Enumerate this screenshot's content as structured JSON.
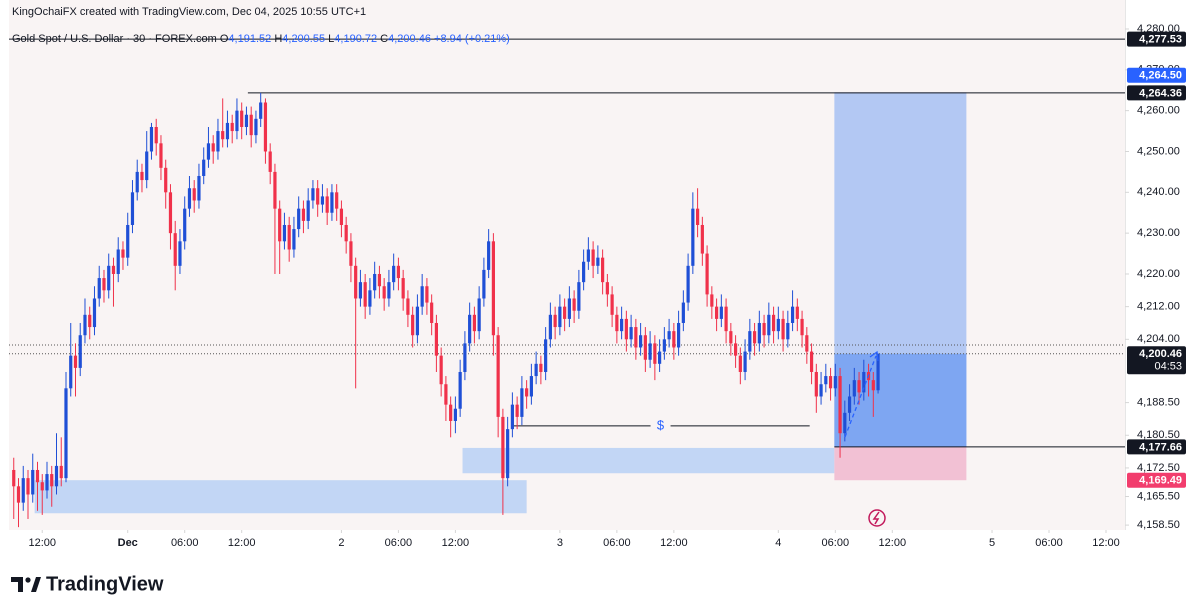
{
  "chart_data": {
    "type": "candlestick",
    "header": "KingOchaiFX created with TradingView.com, Dec 04, 2025 10:55 UTC+1",
    "symbol": "Gold Spot / U.S. Dollar · 30 · FOREX.com",
    "ohlc": [
      {
        "key": "O",
        "text": "4,191.52"
      },
      {
        "key": "H",
        "text": "4,200.55"
      },
      {
        "key": "L",
        "text": "4,190.72"
      },
      {
        "key": "C",
        "text": "4,200.46"
      }
    ],
    "change": "+8.94 (+0.21%)",
    "brand": "TradingView",
    "up_color": "#1f4fd6",
    "down_color": "#f0314a",
    "xlim": [
      -1,
      234
    ],
    "ylim": [
      4157.3,
      4287.1
    ],
    "grid": false,
    "yticks": [
      {
        "value": 4158.5,
        "label": "4,158.50"
      },
      {
        "value": 4165.5,
        "label": "4,165.50"
      },
      {
        "value": 4172.5,
        "label": "4,172.50"
      },
      {
        "value": 4180.5,
        "label": "4,180.50"
      },
      {
        "value": 4188.5,
        "label": "4,188.50"
      },
      {
        "value": 4204,
        "label": "4,204.00"
      },
      {
        "value": 4212,
        "label": "4,212.00"
      },
      {
        "value": 4220,
        "label": "4,220.00"
      },
      {
        "value": 4230,
        "label": "4,230.00"
      },
      {
        "value": 4240,
        "label": "4,240.00"
      },
      {
        "value": 4250,
        "label": "4,250.00"
      },
      {
        "value": 4260,
        "label": "4,260.00"
      },
      {
        "value": 4270,
        "label": "4,270.00"
      },
      {
        "value": 4280,
        "label": "4,280.00"
      }
    ],
    "xticks": [
      {
        "value": 6,
        "label": "12:00"
      },
      {
        "value": 24,
        "label": "Dec"
      },
      {
        "value": 36,
        "label": "06:00"
      },
      {
        "value": 48,
        "label": "12:00"
      },
      {
        "value": 69,
        "label": "2"
      },
      {
        "value": 81,
        "label": "06:00"
      },
      {
        "value": 93,
        "label": "12:00"
      },
      {
        "value": 115,
        "label": "3"
      },
      {
        "value": 127,
        "label": "06:00"
      },
      {
        "value": 139,
        "label": "12:00"
      },
      {
        "value": 161,
        "label": "4"
      },
      {
        "value": 173,
        "label": "06:00"
      },
      {
        "value": 185,
        "label": "12:00"
      },
      {
        "value": 206,
        "label": "5"
      },
      {
        "value": 218,
        "label": "06:00"
      },
      {
        "value": 230,
        "label": "12:00"
      }
    ],
    "x": [
      0,
      1,
      2,
      3,
      4,
      5,
      6,
      7,
      8,
      9,
      10,
      11,
      12,
      13,
      14,
      15,
      16,
      17,
      18,
      19,
      20,
      21,
      22,
      23,
      24,
      25,
      26,
      27,
      28,
      29,
      30,
      31,
      32,
      33,
      34,
      35,
      36,
      37,
      38,
      39,
      40,
      41,
      42,
      43,
      44,
      45,
      46,
      47,
      48,
      49,
      50,
      51,
      52,
      53,
      54,
      55,
      56,
      57,
      58,
      59,
      60,
      61,
      62,
      63,
      64,
      65,
      66,
      67,
      68,
      69,
      70,
      71,
      72,
      73,
      74,
      75,
      76,
      77,
      78,
      79,
      80,
      81,
      82,
      83,
      84,
      85,
      86,
      87,
      88,
      89,
      90,
      91,
      92,
      93,
      94,
      95,
      96,
      97,
      98,
      99,
      100,
      101,
      102,
      103,
      104,
      105,
      106,
      107,
      108,
      109,
      110,
      111,
      112,
      113,
      114,
      115,
      116,
      117,
      118,
      119,
      120,
      121,
      122,
      123,
      124,
      125,
      126,
      127,
      128,
      129,
      130,
      131,
      132,
      133,
      134,
      135,
      136,
      137,
      138,
      139,
      140,
      141,
      142,
      143,
      144,
      145,
      146,
      147,
      148,
      149,
      150,
      151,
      152,
      153,
      154,
      155,
      156,
      157,
      158,
      159,
      160,
      161,
      162,
      163,
      164,
      165,
      166,
      167,
      168,
      169,
      170,
      171,
      172,
      173,
      174,
      175,
      176,
      177,
      178,
      179,
      180,
      181,
      182
    ],
    "candles": [
      [
        4172,
        4175,
        4160,
        4168
      ],
      [
        4168,
        4170,
        4158,
        4164
      ],
      [
        4164,
        4173,
        4162,
        4170
      ],
      [
        4170,
        4172,
        4160,
        4166
      ],
      [
        4166,
        4176,
        4164,
        4172
      ],
      [
        4172,
        4174,
        4162,
        4169
      ],
      [
        4169,
        4171,
        4161,
        4167
      ],
      [
        4167,
        4174,
        4165,
        4171
      ],
      [
        4171,
        4173,
        4163,
        4168
      ],
      [
        4168,
        4181,
        4166,
        4173
      ],
      [
        4173,
        4180,
        4168,
        4170
      ],
      [
        4170,
        4196,
        4169,
        4192
      ],
      [
        4192,
        4208,
        4190,
        4200
      ],
      [
        4200,
        4203,
        4190,
        4197
      ],
      [
        4197,
        4208,
        4195,
        4205
      ],
      [
        4205,
        4214,
        4203,
        4210
      ],
      [
        4210,
        4212,
        4204,
        4207
      ],
      [
        4207,
        4217,
        4205,
        4214
      ],
      [
        4214,
        4222,
        4212,
        4219
      ],
      [
        4219,
        4221,
        4213,
        4216
      ],
      [
        4216,
        4225,
        4214,
        4222
      ],
      [
        4222,
        4224,
        4212,
        4220
      ],
      [
        4220,
        4229,
        4218,
        4226
      ],
      [
        4226,
        4228,
        4221,
        4224
      ],
      [
        4224,
        4235,
        4222,
        4232
      ],
      [
        4232,
        4243,
        4230,
        4240
      ],
      [
        4240,
        4248,
        4238,
        4245
      ],
      [
        4245,
        4247,
        4240,
        4243
      ],
      [
        4243,
        4255,
        4241,
        4250
      ],
      [
        4250,
        4257,
        4248,
        4256
      ],
      [
        4256,
        4258,
        4249,
        4252
      ],
      [
        4252,
        4254,
        4243,
        4246
      ],
      [
        4246,
        4248,
        4236,
        4240
      ],
      [
        4240,
        4242,
        4226,
        4230
      ],
      [
        4230,
        4233,
        4216,
        4222
      ],
      [
        4222,
        4231,
        4220,
        4228
      ],
      [
        4228,
        4239,
        4226,
        4236
      ],
      [
        4236,
        4244,
        4234,
        4241
      ],
      [
        4241,
        4243,
        4235,
        4238
      ],
      [
        4238,
        4247,
        4236,
        4244
      ],
      [
        4244,
        4251,
        4242,
        4248
      ],
      [
        4248,
        4256,
        4246,
        4252
      ],
      [
        4252,
        4254,
        4247,
        4250
      ],
      [
        4250,
        4258,
        4248,
        4255
      ],
      [
        4255,
        4263,
        4251,
        4253
      ],
      [
        4253,
        4260,
        4251,
        4257
      ],
      [
        4257,
        4259,
        4252,
        4255
      ],
      [
        4255,
        4263,
        4253,
        4260
      ],
      [
        4260,
        4262,
        4253,
        4256
      ],
      [
        4256,
        4261,
        4254,
        4259
      ],
      [
        4259,
        4261,
        4251,
        4254
      ],
      [
        4254,
        4260,
        4252,
        4258
      ],
      [
        4258,
        4264.36,
        4256,
        4262
      ],
      [
        4262,
        4263,
        4247,
        4250
      ],
      [
        4250,
        4252,
        4242,
        4245
      ],
      [
        4245,
        4247,
        4220,
        4236
      ],
      [
        4236,
        4238,
        4220,
        4228
      ],
      [
        4228,
        4235,
        4226,
        4232
      ],
      [
        4232,
        4234,
        4223,
        4226
      ],
      [
        4226,
        4234,
        4224,
        4231
      ],
      [
        4231,
        4239,
        4229,
        4236
      ],
      [
        4236,
        4238,
        4230,
        4233
      ],
      [
        4233,
        4241,
        4231,
        4238
      ],
      [
        4238,
        4243,
        4236,
        4241
      ],
      [
        4241,
        4243,
        4234,
        4237
      ],
      [
        4237,
        4242,
        4235,
        4239
      ],
      [
        4239,
        4241,
        4232,
        4235
      ],
      [
        4235,
        4242,
        4233,
        4240
      ],
      [
        4240,
        4242,
        4233,
        4236
      ],
      [
        4236,
        4238,
        4229,
        4232
      ],
      [
        4232,
        4234,
        4225,
        4228
      ],
      [
        4228,
        4230,
        4218,
        4222
      ],
      [
        4222,
        4224,
        4192,
        4214
      ],
      [
        4214,
        4221,
        4212,
        4218
      ],
      [
        4218,
        4220,
        4209,
        4212
      ],
      [
        4212,
        4219,
        4210,
        4216
      ],
      [
        4216,
        4223,
        4214,
        4220
      ],
      [
        4220,
        4222,
        4214,
        4217
      ],
      [
        4217,
        4219,
        4211,
        4214
      ],
      [
        4214,
        4221,
        4212,
        4218
      ],
      [
        4218,
        4225,
        4216,
        4222
      ],
      [
        4222,
        4224,
        4216,
        4219
      ],
      [
        4219,
        4221,
        4211,
        4214
      ],
      [
        4214,
        4216,
        4207,
        4210
      ],
      [
        4210,
        4212,
        4202,
        4205
      ],
      [
        4205,
        4215,
        4203,
        4212
      ],
      [
        4212,
        4220,
        4210,
        4217
      ],
      [
        4217,
        4219,
        4210,
        4213
      ],
      [
        4213,
        4215,
        4205,
        4208
      ],
      [
        4208,
        4210,
        4196,
        4200
      ],
      [
        4200,
        4202,
        4190,
        4193
      ],
      [
        4193,
        4195,
        4184,
        4188
      ],
      [
        4188,
        4190,
        4180,
        4184
      ],
      [
        4184,
        4190,
        4181,
        4187
      ],
      [
        4187,
        4199,
        4185,
        4196
      ],
      [
        4196,
        4206,
        4194,
        4203
      ],
      [
        4203,
        4213,
        4201,
        4210
      ],
      [
        4210,
        4212,
        4203,
        4206
      ],
      [
        4206,
        4217,
        4204,
        4214
      ],
      [
        4214,
        4224,
        4212,
        4221
      ],
      [
        4221,
        4231,
        4219,
        4228
      ],
      [
        4228,
        4230,
        4200,
        4205
      ],
      [
        4205,
        4207,
        4180,
        4185
      ],
      [
        4185,
        4187,
        4161,
        4170
      ],
      [
        4170,
        4185,
        4168,
        4182
      ],
      [
        4182,
        4191,
        4180,
        4188
      ],
      [
        4188,
        4190,
        4182,
        4185
      ],
      [
        4185,
        4195,
        4183,
        4192
      ],
      [
        4192,
        4194,
        4187,
        4190
      ],
      [
        4190,
        4198,
        4188,
        4195
      ],
      [
        4195,
        4201,
        4193,
        4198
      ],
      [
        4198,
        4200,
        4193,
        4196
      ],
      [
        4196,
        4207,
        4194,
        4204
      ],
      [
        4204,
        4213,
        4202,
        4210
      ],
      [
        4210,
        4212,
        4204,
        4207
      ],
      [
        4207,
        4215,
        4205,
        4212
      ],
      [
        4212,
        4214,
        4206,
        4209
      ],
      [
        4209,
        4217,
        4207,
        4214
      ],
      [
        4214,
        4216,
        4208,
        4211
      ],
      [
        4211,
        4221,
        4209,
        4218
      ],
      [
        4218,
        4226,
        4216,
        4223
      ],
      [
        4223,
        4229,
        4221,
        4226
      ],
      [
        4226,
        4228,
        4219,
        4222
      ],
      [
        4222,
        4227,
        4220,
        4224
      ],
      [
        4224,
        4226,
        4215,
        4218
      ],
      [
        4218,
        4220,
        4212,
        4215
      ],
      [
        4215,
        4217,
        4207,
        4210
      ],
      [
        4210,
        4212,
        4203,
        4206
      ],
      [
        4206,
        4212,
        4204,
        4209
      ],
      [
        4209,
        4211,
        4201,
        4204
      ],
      [
        4204,
        4210,
        4202,
        4207
      ],
      [
        4207,
        4209,
        4199,
        4202
      ],
      [
        4202,
        4208,
        4200,
        4205
      ],
      [
        4205,
        4207,
        4196,
        4199
      ],
      [
        4199,
        4206,
        4197,
        4203
      ],
      [
        4203,
        4205,
        4194,
        4198
      ],
      [
        4198,
        4204,
        4196,
        4201
      ],
      [
        4201,
        4207,
        4199,
        4204
      ],
      [
        4204,
        4209,
        4202,
        4206
      ],
      [
        4206,
        4208,
        4199,
        4202
      ],
      [
        4202,
        4211,
        4200,
        4208
      ],
      [
        4208,
        4216,
        4206,
        4213
      ],
      [
        4213,
        4225,
        4211,
        4222
      ],
      [
        4222,
        4240,
        4220,
        4236
      ],
      [
        4236,
        4241,
        4229,
        4232
      ],
      [
        4232,
        4234,
        4222,
        4225
      ],
      [
        4225,
        4227,
        4212,
        4215
      ],
      [
        4215,
        4217,
        4209,
        4212
      ],
      [
        4212,
        4214,
        4206,
        4209
      ],
      [
        4209,
        4215,
        4207,
        4212
      ],
      [
        4212,
        4214,
        4203,
        4206
      ],
      [
        4206,
        4208,
        4200,
        4203
      ],
      [
        4203,
        4205,
        4197,
        4200
      ],
      [
        4200,
        4202,
        4193,
        4196
      ],
      [
        4196,
        4204,
        4194,
        4201
      ],
      [
        4201,
        4209,
        4199,
        4206
      ],
      [
        4206,
        4208,
        4200,
        4203
      ],
      [
        4203,
        4211,
        4201,
        4208
      ],
      [
        4208,
        4210,
        4202,
        4205
      ],
      [
        4205,
        4213,
        4203,
        4210
      ],
      [
        4210,
        4212,
        4203,
        4206
      ],
      [
        4206,
        4212,
        4204,
        4209
      ],
      [
        4209,
        4211,
        4201,
        4204
      ],
      [
        4204,
        4211,
        4202,
        4208
      ],
      [
        4208,
        4216,
        4206,
        4212
      ],
      [
        4212,
        4214,
        4206,
        4209
      ],
      [
        4209,
        4211,
        4202,
        4205
      ],
      [
        4205,
        4207,
        4198,
        4201
      ],
      [
        4201,
        4203,
        4193,
        4196
      ],
      [
        4196,
        4198,
        4186,
        4190
      ],
      [
        4190,
        4196,
        4188,
        4193
      ],
      [
        4193,
        4198,
        4191,
        4195
      ],
      [
        4195,
        4197,
        4189,
        4192
      ],
      [
        4192,
        4198,
        4190,
        4195
      ],
      [
        4195,
        4197,
        4175,
        4181
      ],
      [
        4181,
        4189,
        4179,
        4186
      ],
      [
        4186,
        4193,
        4184,
        4190
      ],
      [
        4190,
        4197,
        4188,
        4194
      ],
      [
        4194,
        4196,
        4188,
        4191
      ],
      [
        4191,
        4199,
        4189,
        4196
      ],
      [
        4196,
        4198,
        4190,
        4194
      ],
      [
        4194,
        4196,
        4185,
        4191.52
      ],
      [
        4191.52,
        4200.55,
        4190.72,
        4200.46
      ]
    ],
    "levels": [
      {
        "value": 4277.53,
        "label": "4,277.53"
      },
      {
        "value": 4264.36,
        "label": "4,264.36",
        "x_start": 49.3
      }
    ],
    "last": {
      "value": 4200.46,
      "label": "4,200.46",
      "countdown": "04:53"
    },
    "dotted_line": 4202.6,
    "zones": [
      {
        "x": [
          4.4,
          108
        ],
        "top": 4169.5,
        "bottom": 4161.4
      },
      {
        "x": [
          94.5,
          172.8
        ],
        "top": 4177.4,
        "bottom": 4171.2
      }
    ],
    "liquidity": {
      "x": [
        104.8,
        167.6
      ],
      "value": 4182.8,
      "label": "$"
    },
    "position": {
      "x": [
        172.8,
        200.6
      ],
      "target": {
        "value": 4264.5,
        "label": "4,264.50"
      },
      "entry": {
        "value": 4177.66,
        "label": "4,177.66"
      },
      "stop": {
        "value": 4169.49,
        "label": "4,169.49"
      }
    }
  }
}
